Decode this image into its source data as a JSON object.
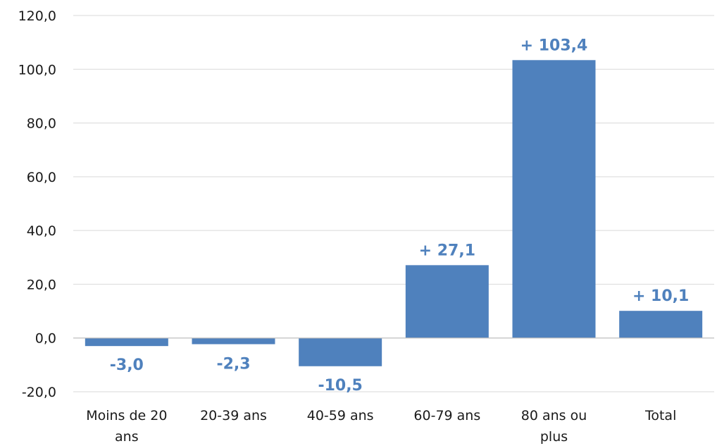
{
  "chart_data": {
    "type": "bar",
    "categories": [
      [
        "Moins de 20",
        "ans"
      ],
      [
        "20-39 ans"
      ],
      [
        "40-59 ans"
      ],
      [
        "60-79 ans"
      ],
      [
        "80 ans ou",
        "plus"
      ],
      [
        "Total"
      ]
    ],
    "values": [
      -3.0,
      -2.3,
      -10.5,
      27.1,
      103.4,
      10.1
    ],
    "data_labels": [
      "-3,0",
      "-2,3",
      "-10,5",
      "+ 27,1",
      "+ 103,4",
      "+ 10,1"
    ],
    "y_ticks": [
      -20,
      0,
      20,
      40,
      60,
      80,
      100,
      120
    ],
    "y_tick_labels": [
      "-20,0",
      "0,0",
      "20,0",
      "40,0",
      "60,0",
      "80,0",
      "100,0",
      "120,0"
    ],
    "ylim": [
      -20,
      120
    ],
    "title": "",
    "xlabel": "",
    "ylabel": "",
    "grid": true,
    "legend": "none",
    "bar_color": "#4f81bd",
    "label_color": "#4f81bd"
  }
}
